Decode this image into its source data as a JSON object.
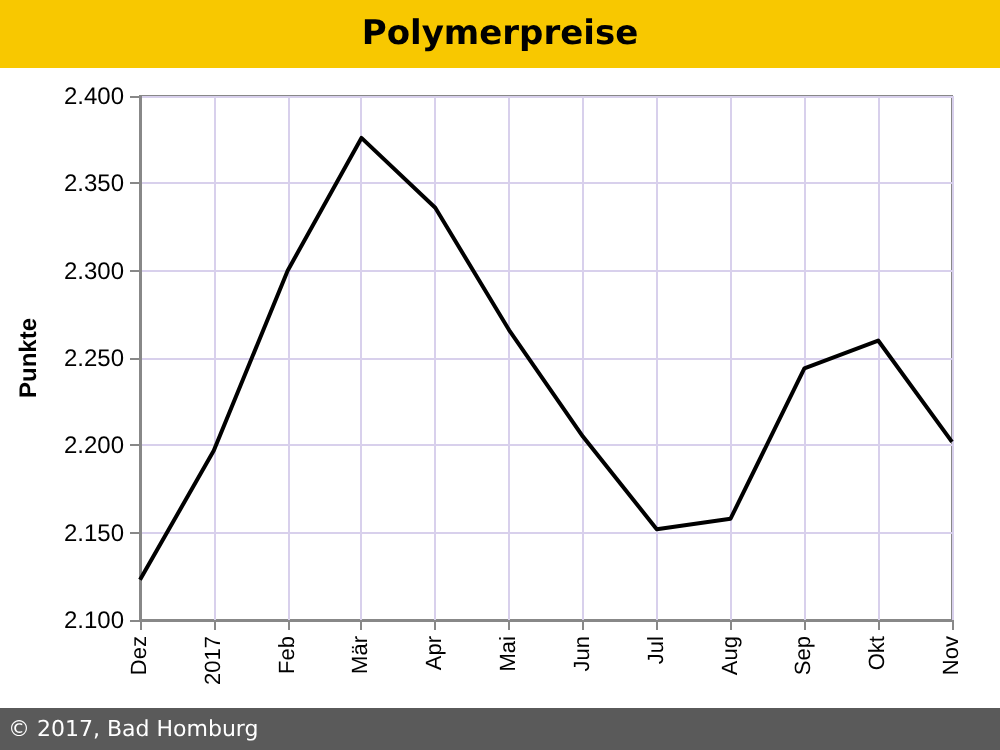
{
  "chart_data": {
    "type": "line",
    "title": "Polymerpreise",
    "ylabel": "Punkte",
    "categories": [
      "Dez",
      "2017",
      "Feb",
      "Mär",
      "Apr",
      "Mai",
      "Jun",
      "Jul",
      "Aug",
      "Sep",
      "Okt",
      "Nov"
    ],
    "series": [
      {
        "color": "#000000",
        "values": [
          2123,
          2197,
          2300,
          2376,
          2336,
          2266,
          2205,
          2152,
          2158,
          2244,
          2260,
          2202
        ]
      }
    ],
    "ylim": [
      2100,
      2400
    ],
    "yticks": [
      {
        "value": 2100,
        "label": "2.100"
      },
      {
        "value": 2150,
        "label": "2.150"
      },
      {
        "value": 2200,
        "label": "2.200"
      },
      {
        "value": 2250,
        "label": "2.250"
      },
      {
        "value": 2300,
        "label": "2.300"
      },
      {
        "value": 2350,
        "label": "2.350"
      },
      {
        "value": 2400,
        "label": "2.400"
      }
    ],
    "grid": true,
    "legend": false,
    "marker": "none",
    "line_style": "solid",
    "annotations": [
      "© 2017, Bad Homburg"
    ]
  }
}
